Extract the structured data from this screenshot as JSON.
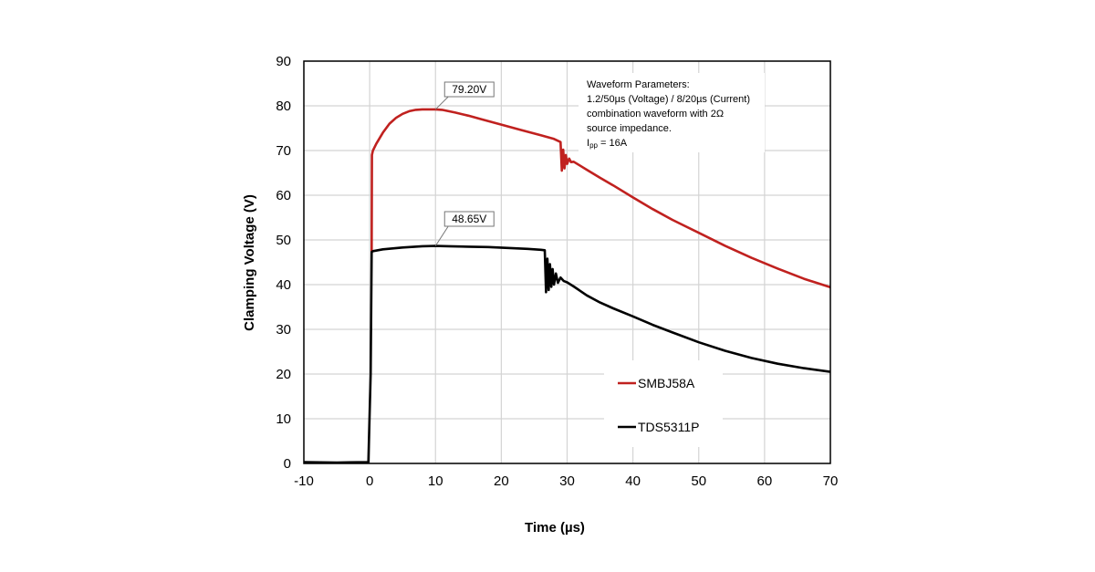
{
  "chart_data": {
    "type": "line",
    "xlabel": "Time (µs)",
    "ylabel": "Clamping Voltage (V)",
    "xlim": [
      -10,
      70
    ],
    "ylim": [
      0,
      90
    ],
    "xticks": [
      -10,
      0,
      10,
      20,
      30,
      40,
      50,
      60,
      70
    ],
    "yticks": [
      0,
      10,
      20,
      30,
      40,
      50,
      60,
      70,
      80,
      90
    ],
    "xtick_labels": [
      "-10",
      "0",
      "10",
      "20",
      "30",
      "40",
      "50",
      "60",
      "70"
    ],
    "ytick_labels": [
      "0",
      "10",
      "20",
      "30",
      "40",
      "50",
      "60",
      "70",
      "80",
      "90"
    ],
    "grid": true,
    "legend_position": "bottom-right",
    "series": [
      {
        "name": "SMBJ58A",
        "color": "#c0211f",
        "x": [
          0.3,
          0.35,
          0.5,
          1,
          2,
          3,
          4,
          5,
          6,
          7,
          8,
          9,
          10,
          11,
          12,
          13,
          15,
          17,
          20,
          23,
          26,
          28,
          29,
          29.2,
          29.4,
          29.6,
          29.8,
          30,
          30.3,
          30.6,
          31,
          32,
          33,
          35,
          37,
          40,
          43,
          46,
          50,
          54,
          58,
          62,
          66,
          70
        ],
        "y": [
          47,
          69,
          70,
          71.5,
          74,
          76,
          77.3,
          78.2,
          78.8,
          79.1,
          79.2,
          79.2,
          79.2,
          79.1,
          78.8,
          78.5,
          77.8,
          77.0,
          75.8,
          74.6,
          73.4,
          72.6,
          71.9,
          65.5,
          70.2,
          66.0,
          69.0,
          67.0,
          68.2,
          67.4,
          67.5,
          66.6,
          65.7,
          63.9,
          62.2,
          59.5,
          56.9,
          54.5,
          51.6,
          48.7,
          46.0,
          43.6,
          41.3,
          39.4
        ]
      },
      {
        "name": "TDS5311P",
        "color": "#000000",
        "x": [
          -10,
          -5,
          -0.2,
          0.15,
          0.3,
          0.5,
          2,
          5,
          8,
          10,
          12,
          15,
          18,
          21,
          24,
          26,
          26.6,
          26.8,
          27.0,
          27.2,
          27.4,
          27.6,
          27.8,
          28.0,
          28.3,
          28.6,
          29,
          29.5,
          30,
          31,
          33,
          35,
          37,
          40,
          43,
          46,
          50,
          54,
          58,
          62,
          66,
          70
        ],
        "y": [
          0.3,
          0.2,
          0.3,
          20,
          47.3,
          47.5,
          47.9,
          48.3,
          48.6,
          48.65,
          48.6,
          48.5,
          48.4,
          48.2,
          48.0,
          47.8,
          47.7,
          38.3,
          45.8,
          38.8,
          44.6,
          39.5,
          43.5,
          40.0,
          42.5,
          40.4,
          41.6,
          40.8,
          40.5,
          39.6,
          37.6,
          36.0,
          34.7,
          32.9,
          31.0,
          29.3,
          27.1,
          25.2,
          23.6,
          22.3,
          21.3,
          20.5
        ]
      }
    ],
    "annotations": [
      {
        "label": "79.20V",
        "x": 10,
        "y": 79.2
      },
      {
        "label": "48.65V",
        "x": 10,
        "y": 48.65
      }
    ],
    "note": {
      "line1": "Waveform Parameters:",
      "line2": "1.2/50µs (Voltage) / 8/20µs (Current)",
      "line3": "combination waveform with 2Ω",
      "line4": "source impedance.",
      "line5_main": "I",
      "line5_sub": "pp",
      "line5_rest": " = 16A"
    }
  }
}
